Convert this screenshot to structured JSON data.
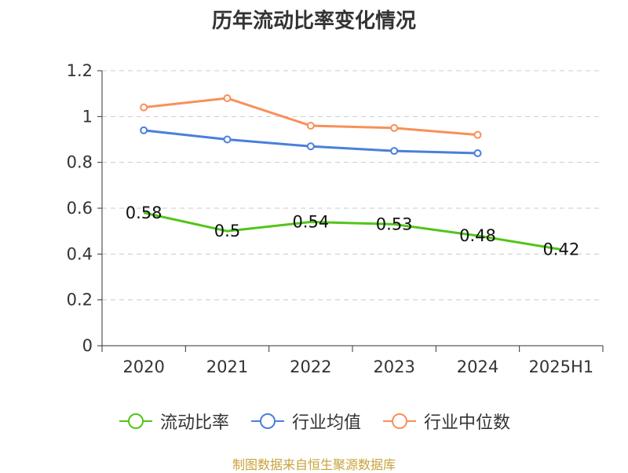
{
  "chart_data": {
    "type": "line",
    "title": "历年流动比率变化情况",
    "categories": [
      "2020",
      "2021",
      "2022",
      "2023",
      "2024",
      "2025H1"
    ],
    "ylim": [
      0,
      1.2
    ],
    "yticks": [
      0,
      0.2,
      0.4,
      0.6,
      0.8,
      1,
      1.2
    ],
    "ytick_labels": [
      "0",
      "0.2",
      "0.4",
      "0.6",
      "0.8",
      "1",
      "1.2"
    ],
    "grid": true,
    "legend_position": "bottom",
    "series": [
      {
        "name": "流动比率",
        "color": "#52c41a",
        "values": [
          0.58,
          0.5,
          0.54,
          0.53,
          0.48,
          0.42
        ],
        "labels": [
          "0.58",
          "0.5",
          "0.54",
          "0.53",
          "0.48",
          "0.42"
        ]
      },
      {
        "name": "行业均值",
        "color": "#4a7fdc",
        "values": [
          0.94,
          0.9,
          0.87,
          0.85,
          0.84,
          null
        ]
      },
      {
        "name": "行业中位数",
        "color": "#f89058",
        "values": [
          1.04,
          1.08,
          0.96,
          0.95,
          0.92,
          null
        ]
      }
    ]
  },
  "source_text": "制图数据来自恒生聚源数据库"
}
